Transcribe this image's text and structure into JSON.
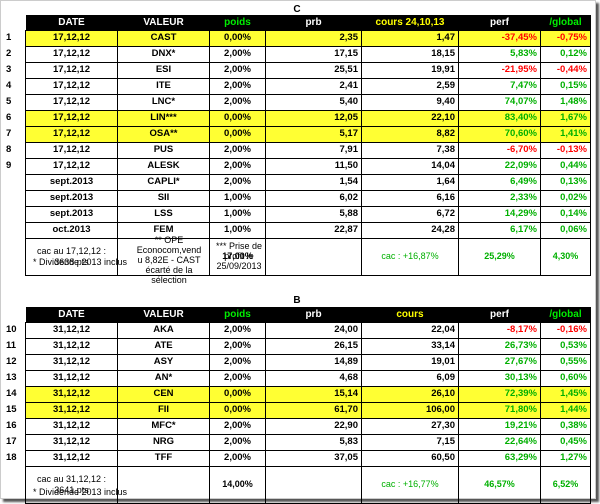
{
  "table_c": {
    "letter": "C",
    "headers": [
      "DATE",
      "VALEUR",
      "poids",
      "prb",
      "cours 24,10,13",
      "perf",
      "/global"
    ],
    "rows": [
      {
        "n": "1",
        "date": "17,12,12",
        "valeur": "CAST",
        "poids": "0,00%",
        "prb": "2,35",
        "cours": "1,47",
        "perf": "-37,45%",
        "global": "-0,75%",
        "hl": true,
        "sign": "neg"
      },
      {
        "n": "2",
        "date": "17,12,12",
        "valeur": "DNX*",
        "poids": "2,00%",
        "prb": "17,15",
        "cours": "18,15",
        "perf": "5,83%",
        "global": "0,12%",
        "hl": false,
        "sign": "pos"
      },
      {
        "n": "3",
        "date": "17,12,12",
        "valeur": "ESI",
        "poids": "2,00%",
        "prb": "25,51",
        "cours": "19,91",
        "perf": "-21,95%",
        "global": "-0,44%",
        "hl": false,
        "sign": "neg"
      },
      {
        "n": "4",
        "date": "17,12,12",
        "valeur": "ITE",
        "poids": "2,00%",
        "prb": "2,41",
        "cours": "2,59",
        "perf": "7,47%",
        "global": "0,15%",
        "hl": false,
        "sign": "pos"
      },
      {
        "n": "5",
        "date": "17,12,12",
        "valeur": "LNC*",
        "poids": "2,00%",
        "prb": "5,40",
        "cours": "9,40",
        "perf": "74,07%",
        "global": "1,48%",
        "hl": false,
        "sign": "pos"
      },
      {
        "n": "6",
        "date": "17,12,12",
        "valeur": "LIN***",
        "poids": "0,00%",
        "prb": "12,05",
        "cours": "22,10",
        "perf": "83,40%",
        "global": "1,67%",
        "hl": true,
        "sign": "pos"
      },
      {
        "n": "7",
        "date": "17,12,12",
        "valeur": "OSA**",
        "poids": "0,00%",
        "prb": "5,17",
        "cours": "8,82",
        "perf": "70,60%",
        "global": "1,41%",
        "hl": true,
        "sign": "pos"
      },
      {
        "n": "8",
        "date": "17,12,12",
        "valeur": "PUS",
        "poids": "2,00%",
        "prb": "7,91",
        "cours": "7,38",
        "perf": "-6,70%",
        "global": "-0,13%",
        "hl": false,
        "sign": "neg"
      },
      {
        "n": "9",
        "date": "17,12,12",
        "valeur": "ALESK",
        "poids": "2,00%",
        "prb": "11,50",
        "cours": "14,04",
        "perf": "22,09%",
        "global": "0,44%",
        "hl": false,
        "sign": "pos"
      },
      {
        "n": "",
        "date": "sept.2013",
        "valeur": "CAPLI*",
        "poids": "2,00%",
        "prb": "1,54",
        "cours": "1,64",
        "perf": "6,49%",
        "global": "0,13%",
        "hl": false,
        "sign": "pos"
      },
      {
        "n": "",
        "date": "sept.2013",
        "valeur": "SII",
        "poids": "1,00%",
        "prb": "6,02",
        "cours": "6,16",
        "perf": "2,33%",
        "global": "0,02%",
        "hl": false,
        "sign": "pos"
      },
      {
        "n": "",
        "date": "sept.2013",
        "valeur": "LSS",
        "poids": "1,00%",
        "prb": "5,88",
        "cours": "6,72",
        "perf": "14,29%",
        "global": "0,14%",
        "hl": false,
        "sign": "pos"
      },
      {
        "n": "",
        "date": "oct.2013",
        "valeur": "FEM",
        "poids": "1,00%",
        "prb": "22,87",
        "cours": "24,28",
        "perf": "6,17%",
        "global": "0,06%",
        "hl": false,
        "sign": "pos"
      }
    ],
    "footer": {
      "cac": "cac au 17,12,12 : 3638 pts",
      "poids": "17,00%",
      "cac_perf": "cac : +16,87%",
      "perf": "25,29%",
      "global": "4,30%"
    }
  },
  "notes_c": {
    "div": "* Dividende 2013 inclus",
    "ope": "** OPE Econocom,vend u 8,82E - CAST écarté de la sélection",
    "profit": "*** Prise de profit le 25/09/2013"
  },
  "table_b": {
    "letter": "B",
    "headers": [
      "DATE",
      "VALEUR",
      "poids",
      "prb",
      "cours",
      "perf",
      "/global"
    ],
    "rows": [
      {
        "n": "10",
        "date": "31,12,12",
        "valeur": "AKA",
        "poids": "2,00%",
        "prb": "24,00",
        "cours": "22,04",
        "perf": "-8,17%",
        "global": "-0,16%",
        "hl": false,
        "sign": "neg"
      },
      {
        "n": "11",
        "date": "31,12,12",
        "valeur": "ATE",
        "poids": "2,00%",
        "prb": "26,15",
        "cours": "33,14",
        "perf": "26,73%",
        "global": "0,53%",
        "hl": false,
        "sign": "pos"
      },
      {
        "n": "12",
        "date": "31,12,12",
        "valeur": "ASY",
        "poids": "2,00%",
        "prb": "14,89",
        "cours": "19,01",
        "perf": "27,67%",
        "global": "0,55%",
        "hl": false,
        "sign": "pos"
      },
      {
        "n": "13",
        "date": "31,12,12",
        "valeur": "AN*",
        "poids": "2,00%",
        "prb": "4,68",
        "cours": "6,09",
        "perf": "30,13%",
        "global": "0,60%",
        "hl": false,
        "sign": "pos"
      },
      {
        "n": "14",
        "date": "31,12,12",
        "valeur": "CEN",
        "poids": "0,00%",
        "prb": "15,14",
        "cours": "26,10",
        "perf": "72,39%",
        "global": "1,45%",
        "hl": true,
        "sign": "pos"
      },
      {
        "n": "15",
        "date": "31,12,12",
        "valeur": "FII",
        "poids": "0,00%",
        "prb": "61,70",
        "cours": "106,00",
        "perf": "71,80%",
        "global": "1,44%",
        "hl": true,
        "sign": "pos"
      },
      {
        "n": "16",
        "date": "31,12,12",
        "valeur": "MFC*",
        "poids": "2,00%",
        "prb": "22,90",
        "cours": "27,30",
        "perf": "19,21%",
        "global": "0,38%",
        "hl": false,
        "sign": "pos"
      },
      {
        "n": "17",
        "date": "31,12,12",
        "valeur": "NRG",
        "poids": "2,00%",
        "prb": "5,83",
        "cours": "7,15",
        "perf": "22,64%",
        "global": "0,45%",
        "hl": false,
        "sign": "pos"
      },
      {
        "n": "18",
        "date": "31,12,12",
        "valeur": "TFF",
        "poids": "2,00%",
        "prb": "37,05",
        "cours": "60,50",
        "perf": "63,29%",
        "global": "1,27%",
        "hl": false,
        "sign": "pos"
      }
    ],
    "footer": {
      "cac": "cac au 31,12,12 : 3641 pts",
      "poids": "14,00%",
      "cac_perf": "cac : +16,77%",
      "perf": "46,57%",
      "global": "6,52%"
    }
  },
  "notes_b": {
    "div": "* Dividende 2013 inclus"
  },
  "colors": {
    "highlight": "#ffff33",
    "positive": "#00b000",
    "negative": "#ff0000",
    "header_bg": "#000000"
  }
}
